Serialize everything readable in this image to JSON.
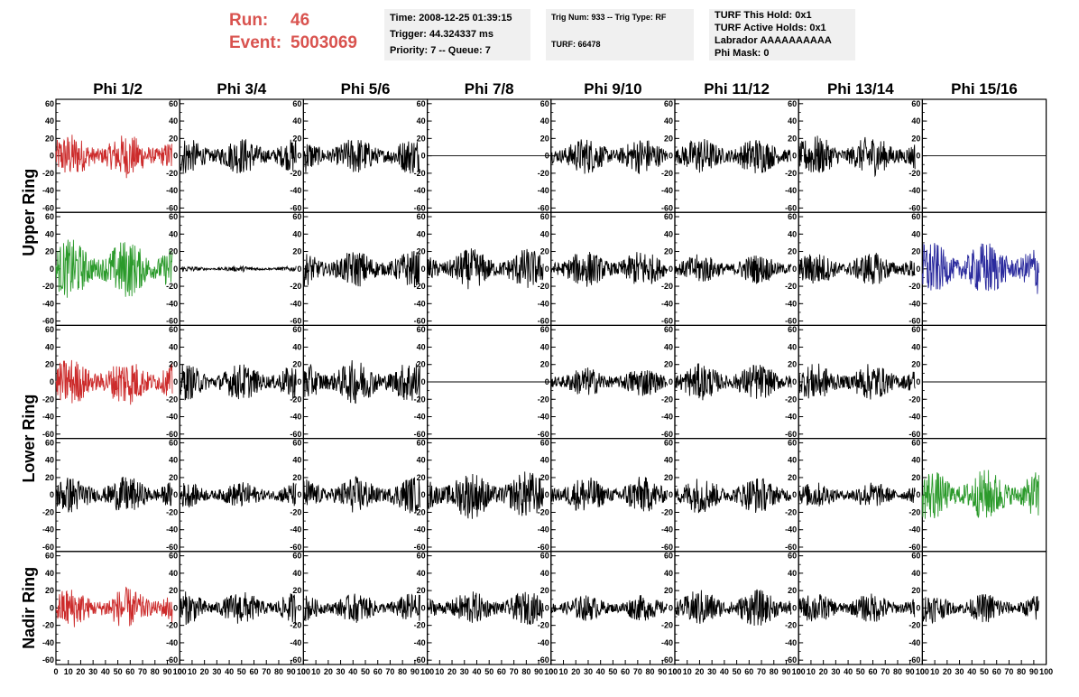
{
  "header": {
    "run_label": "Run:",
    "run_value": "46",
    "event_label": "Event:",
    "event_value": "5003069",
    "box1": [
      "Time: 2008-12-25 01:39:15",
      "Trigger: 44.324337 ms",
      "Priority: 7 -- Queue: 7"
    ],
    "box2": [
      "Trig Num: 933 -- Trig Type: RF",
      "",
      "TURF: 66478"
    ],
    "box3": [
      "TURF This Hold: 0x1",
      "TURF Active Holds: 0x1",
      "Labrador AAAAAAAAAA",
      "Phi Mask: 0"
    ]
  },
  "colors": {
    "black": "#000000",
    "red": "#cc2b2b",
    "green": "#2b9a2b",
    "blue": "#2b2b9e",
    "header_red": "#d9534f"
  },
  "chart_data": {
    "type": "line",
    "columns": [
      "Phi 1/2",
      "Phi 3/4",
      "Phi 5/6",
      "Phi 7/8",
      "Phi 9/10",
      "Phi 11/12",
      "Phi 13/14",
      "Phi 15/16"
    ],
    "rows": [
      "Upper Ring",
      "Lower Ring",
      "Nadir Ring"
    ],
    "ylim": [
      -65,
      65
    ],
    "xlim": [
      0,
      100
    ],
    "y_ticks": [
      60,
      40,
      20,
      0,
      -20,
      -40,
      -60
    ],
    "x_ticks": [
      0,
      10,
      20,
      30,
      40,
      50,
      60,
      70,
      80,
      90,
      100
    ],
    "x_tick_labels": [
      "0",
      "10",
      "20",
      "30",
      "40",
      "50",
      "60",
      "70",
      "80",
      "90",
      "100"
    ],
    "panels": [
      {
        "row": 0,
        "col": 0,
        "color": "red",
        "amplitude": 12
      },
      {
        "row": 0,
        "col": 1,
        "color": "black",
        "amplitude": 10
      },
      {
        "row": 0,
        "col": 2,
        "color": "black",
        "amplitude": 10
      },
      {
        "row": 0,
        "col": 3,
        "color": "black",
        "amplitude": 0
      },
      {
        "row": 0,
        "col": 4,
        "color": "black",
        "amplitude": 10
      },
      {
        "row": 0,
        "col": 5,
        "color": "black",
        "amplitude": 10
      },
      {
        "row": 0,
        "col": 6,
        "color": "black",
        "amplitude": 11
      },
      {
        "row": 0,
        "col": 7,
        "color": "black",
        "amplitude": 0
      },
      {
        "row": 1,
        "col": 0,
        "color": "green",
        "amplitude": 16
      },
      {
        "row": 1,
        "col": 1,
        "color": "black",
        "amplitude": 1.5
      },
      {
        "row": 1,
        "col": 2,
        "color": "black",
        "amplitude": 10
      },
      {
        "row": 1,
        "col": 3,
        "color": "black",
        "amplitude": 11
      },
      {
        "row": 1,
        "col": 4,
        "color": "black",
        "amplitude": 10
      },
      {
        "row": 1,
        "col": 5,
        "color": "black",
        "amplitude": 8
      },
      {
        "row": 1,
        "col": 6,
        "color": "black",
        "amplitude": 9
      },
      {
        "row": 1,
        "col": 7,
        "color": "blue",
        "amplitude": 15
      },
      {
        "row": 2,
        "col": 0,
        "color": "red",
        "amplitude": 13
      },
      {
        "row": 2,
        "col": 1,
        "color": "black",
        "amplitude": 10
      },
      {
        "row": 2,
        "col": 2,
        "color": "black",
        "amplitude": 12
      },
      {
        "row": 2,
        "col": 3,
        "color": "black",
        "amplitude": 0
      },
      {
        "row": 2,
        "col": 4,
        "color": "black",
        "amplitude": 8
      },
      {
        "row": 2,
        "col": 5,
        "color": "black",
        "amplitude": 10
      },
      {
        "row": 2,
        "col": 6,
        "color": "black",
        "amplitude": 10
      },
      {
        "row": 2,
        "col": 7,
        "color": "black",
        "amplitude": 0
      },
      {
        "row": 3,
        "col": 0,
        "color": "black",
        "amplitude": 10
      },
      {
        "row": 3,
        "col": 1,
        "color": "black",
        "amplitude": 7
      },
      {
        "row": 3,
        "col": 2,
        "color": "black",
        "amplitude": 10
      },
      {
        "row": 3,
        "col": 3,
        "color": "black",
        "amplitude": 13
      },
      {
        "row": 3,
        "col": 4,
        "color": "black",
        "amplitude": 10
      },
      {
        "row": 3,
        "col": 5,
        "color": "black",
        "amplitude": 10
      },
      {
        "row": 3,
        "col": 6,
        "color": "black",
        "amplitude": 7
      },
      {
        "row": 3,
        "col": 7,
        "color": "green",
        "amplitude": 14
      },
      {
        "row": 4,
        "col": 0,
        "color": "red",
        "amplitude": 11
      },
      {
        "row": 4,
        "col": 1,
        "color": "black",
        "amplitude": 9
      },
      {
        "row": 4,
        "col": 2,
        "color": "black",
        "amplitude": 8
      },
      {
        "row": 4,
        "col": 3,
        "color": "black",
        "amplitude": 9
      },
      {
        "row": 4,
        "col": 4,
        "color": "black",
        "amplitude": 7
      },
      {
        "row": 4,
        "col": 5,
        "color": "black",
        "amplitude": 10
      },
      {
        "row": 4,
        "col": 6,
        "color": "black",
        "amplitude": 8
      },
      {
        "row": 4,
        "col": 7,
        "color": "black",
        "amplitude": 8
      }
    ]
  }
}
